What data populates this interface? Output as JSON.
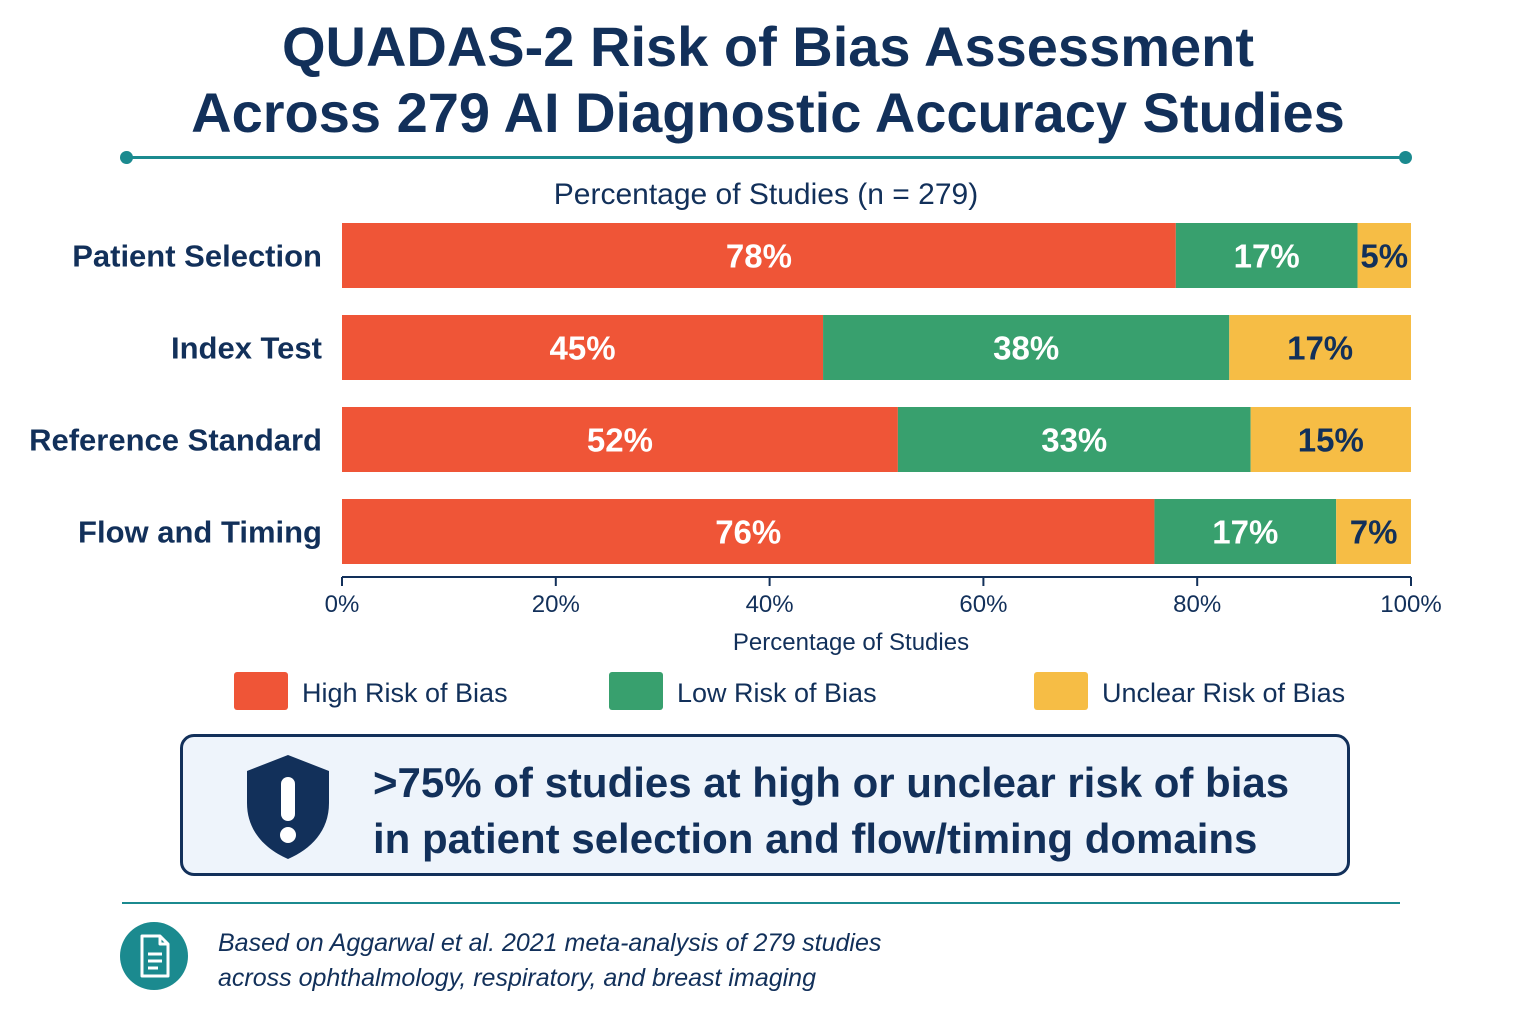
{
  "title": {
    "line1": "QUADAS-2 Risk of Bias Assessment",
    "line2": "Across 279 AI Diagnostic Accuracy Studies"
  },
  "chart_data": {
    "type": "bar",
    "orientation": "horizontal-stacked",
    "subtitle": "Percentage of Studies (n = 279)",
    "xlabel": "Percentage of Studies",
    "ylabel": "",
    "xlim": [
      0,
      100
    ],
    "x_ticks": [
      0,
      20,
      40,
      60,
      80,
      100
    ],
    "tick_suffix": "%",
    "categories": [
      "Patient Selection",
      "Index Test",
      "Reference Standard",
      "Flow and Timing"
    ],
    "series": [
      {
        "name": "High Risk of Bias",
        "color": "#ef5537",
        "values": [
          78,
          45,
          52,
          76
        ]
      },
      {
        "name": "Low Risk of Bias",
        "color": "#38a06e",
        "values": [
          17,
          38,
          33,
          17
        ]
      },
      {
        "name": "Unclear Risk of Bias",
        "color": "#f6bd45",
        "values": [
          5,
          17,
          15,
          7
        ]
      }
    ],
    "grid": false,
    "legend_position": "bottom"
  },
  "callout": {
    "icon": "shield-alert-icon",
    "line1": ">75% of studies at high or unclear risk of bias",
    "line2": "in patient selection and flow/timing domains"
  },
  "footnote": {
    "icon": "document-icon",
    "line1": "Based on Aggarwal et al. 2021 meta-analysis of 279 studies",
    "line2": "across ophthalmology, respiratory, and breast imaging"
  },
  "colors": {
    "navy": "#12305a",
    "teal": "#1b8a8f",
    "high": "#ef5537",
    "low": "#38a06e",
    "unclear": "#f6bd45"
  }
}
